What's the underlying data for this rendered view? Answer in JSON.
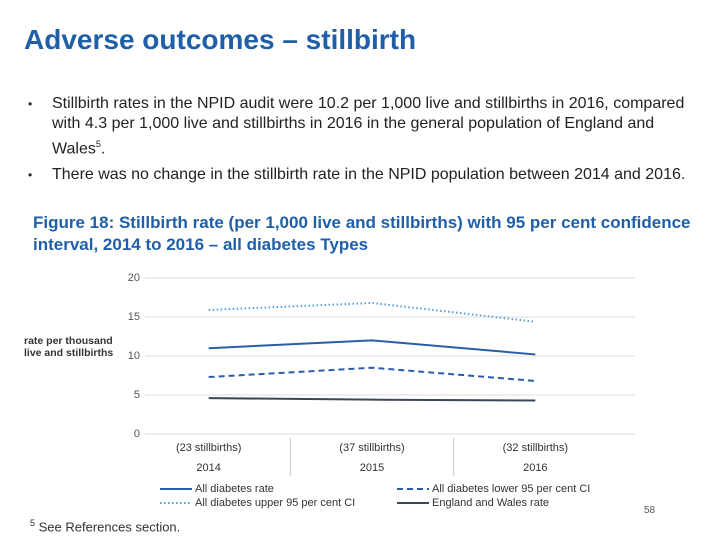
{
  "slide_title": "Adverse outcomes – stillbirth",
  "bullets": [
    {
      "text": "Stillbirth rates in the NPID audit were 10.2 per 1,000 live and stillbirths in 2016, compared with 4.3 per 1,000 live and stillbirths in 2016 in the general population of England and Wales",
      "footnote_ref": "5",
      "tail": "."
    },
    {
      "text": "There was no change in the stillbirth rate in the NPID population between 2014 and 2016."
    }
  ],
  "bullet_symbol": "•",
  "figure_caption": "Figure 18: Stillbirth rate (per 1,000 live and stillbirths) with 95 per cent confidence interval, 2014 to 2016 – all diabetes Types",
  "footnote": {
    "ref": "5",
    "text": "See References section."
  },
  "page_number": "58",
  "chart_data": {
    "type": "line",
    "y_label": [
      "rate per thousand",
      "live and stillbirths"
    ],
    "categories": [
      "2014",
      "2015",
      "2016"
    ],
    "category_notes": [
      "(23 stillbirths)",
      "(37 stillbirths)",
      "(32 stillbirths)"
    ],
    "ylim": [
      0,
      20
    ],
    "yticks": [
      0,
      5,
      10,
      15,
      20
    ],
    "grid": true,
    "series": [
      {
        "name": "All diabetes rate",
        "color": "#2a5ea8",
        "dash": "solid",
        "values": [
          11.0,
          12.0,
          10.2
        ]
      },
      {
        "name": "All diabetes lower 95 per cent CI",
        "color": "#2a5ea8",
        "dash": "dashed",
        "values": [
          7.3,
          8.5,
          6.8
        ]
      },
      {
        "name": "All diabetes upper 95 per cent CI",
        "color": "#5b9bd5",
        "dash": "dotted",
        "values": [
          15.9,
          16.8,
          14.4
        ]
      },
      {
        "name": "England and Wales rate",
        "color": "#3b4755",
        "dash": "solid",
        "values": [
          4.6,
          4.4,
          4.3
        ]
      }
    ]
  }
}
